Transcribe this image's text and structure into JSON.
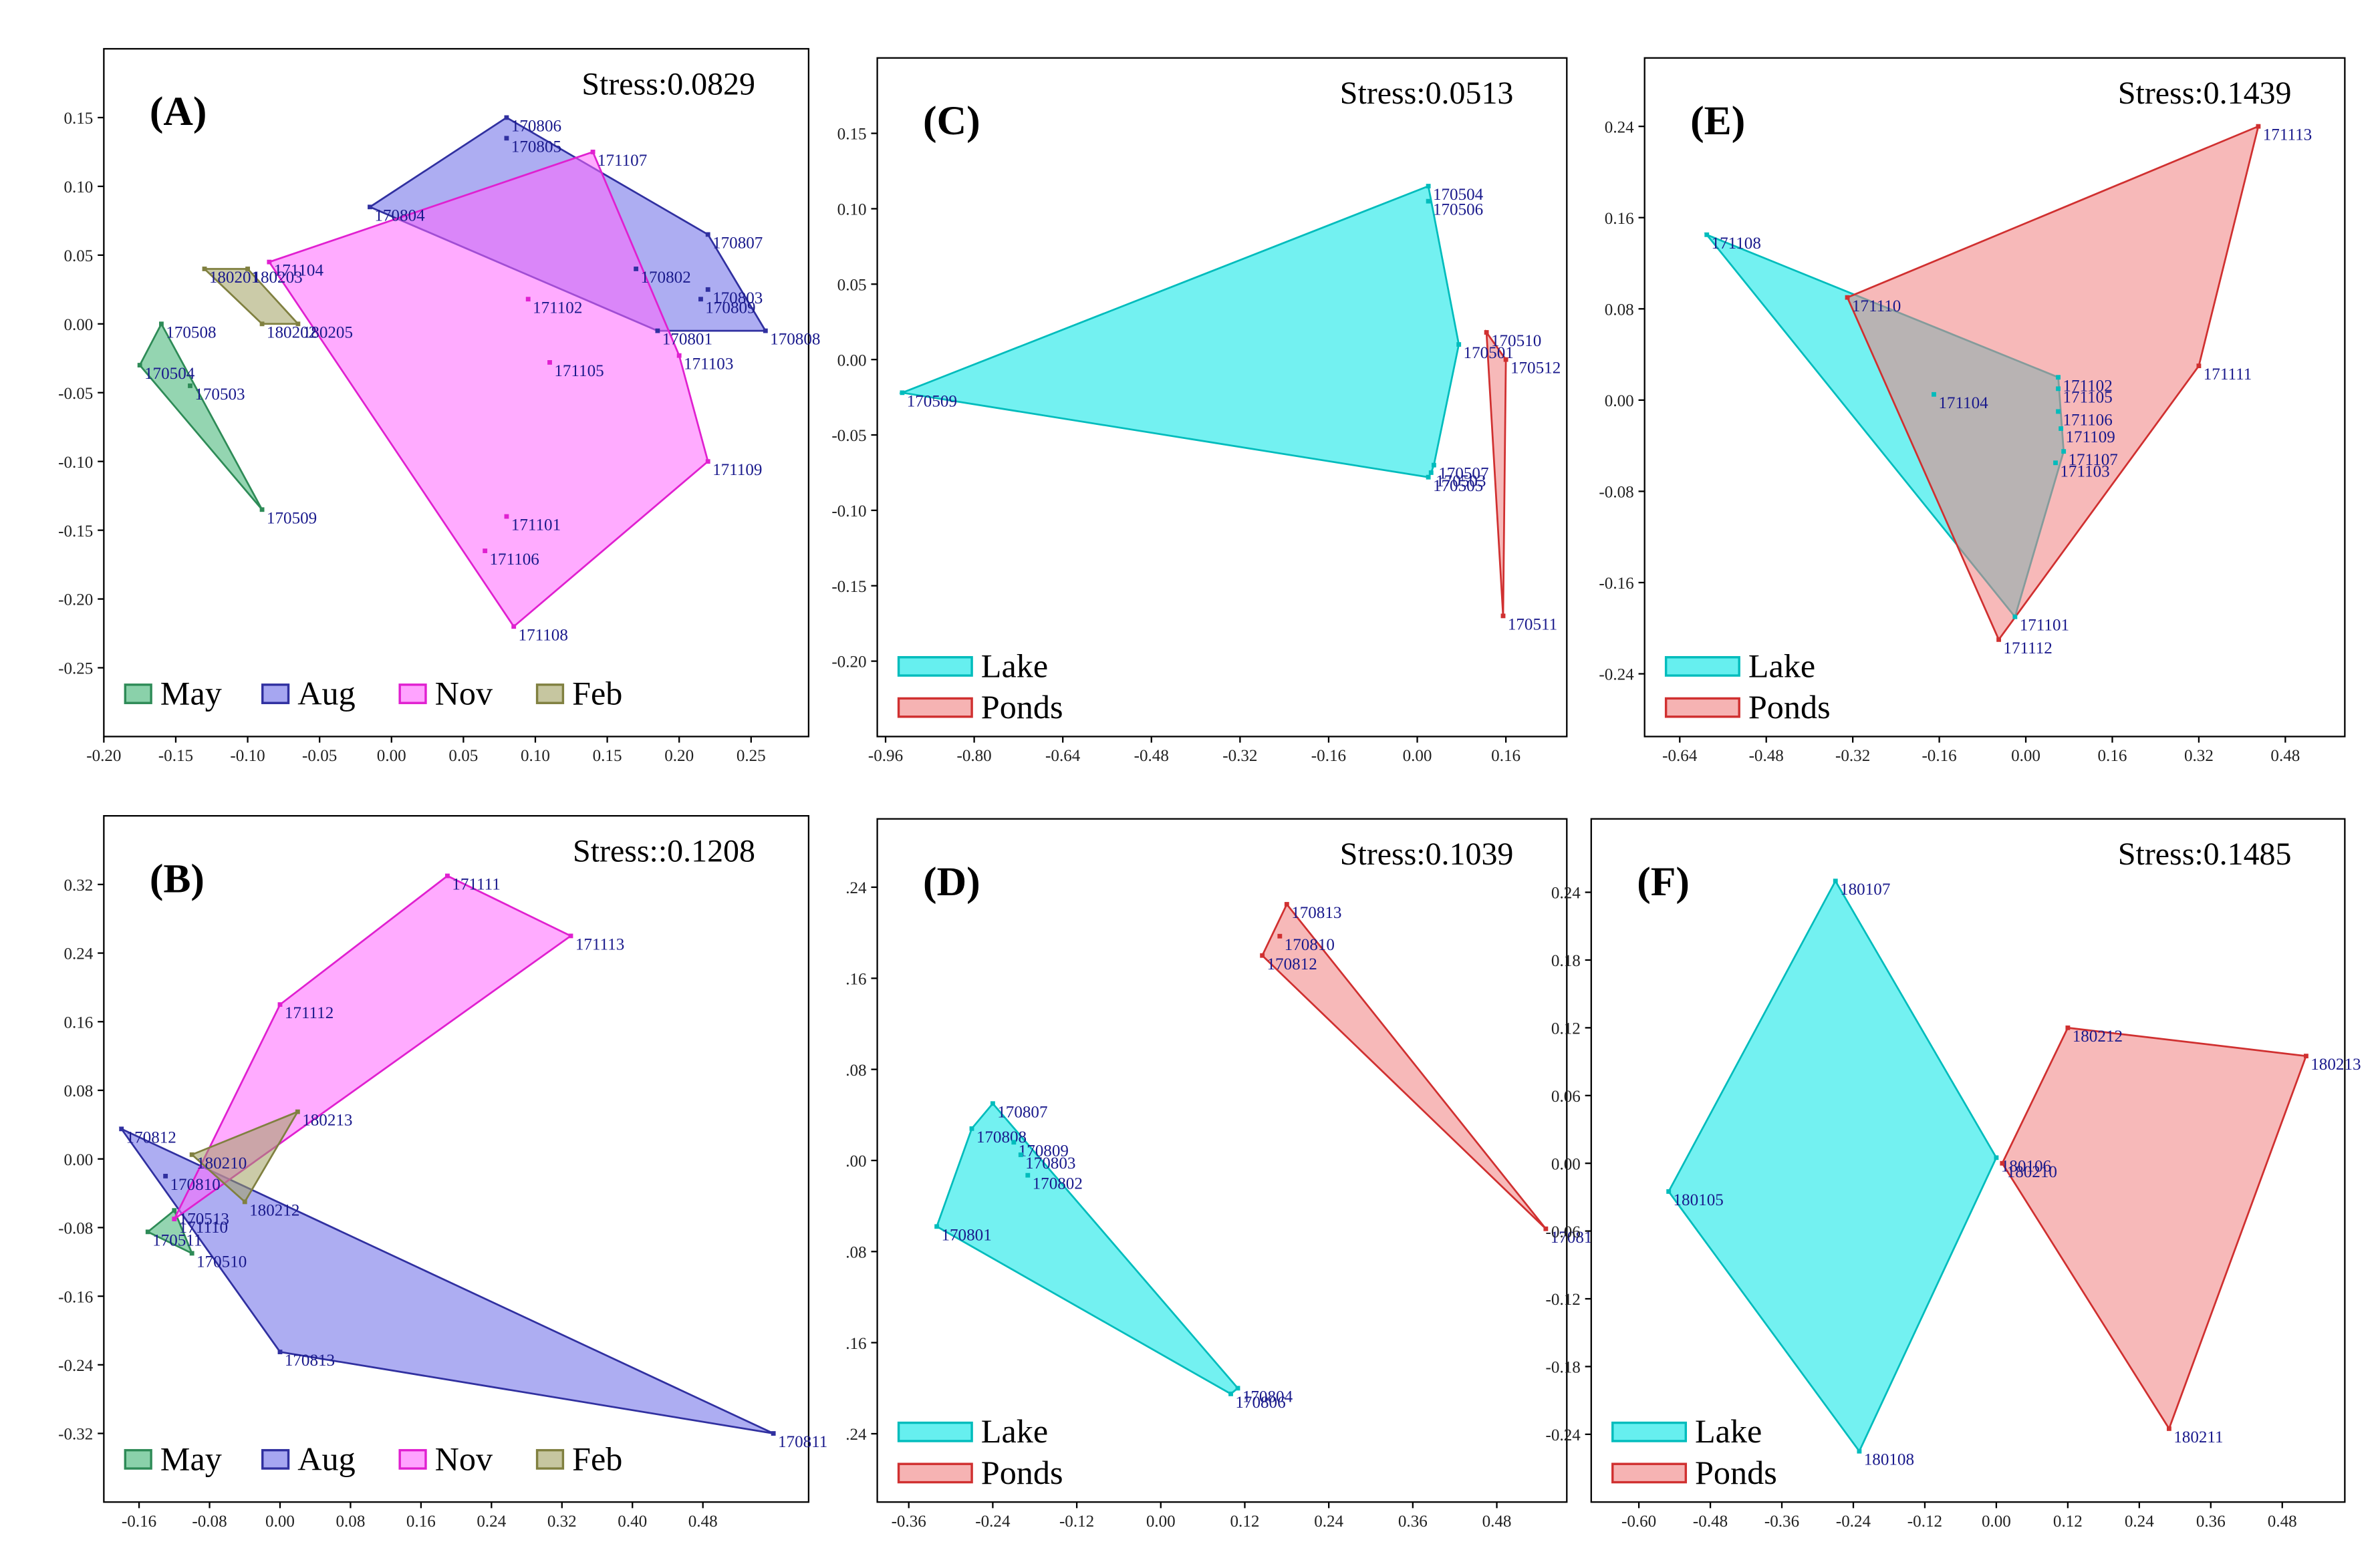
{
  "chart_data": [
    {
      "type": "scatter",
      "title": "(A)",
      "annotation": "Stress:0.0829",
      "legend": "lower left",
      "xlim": [
        -0.2,
        0.29
      ],
      "ylim": [
        -0.3,
        0.2
      ],
      "xticks": [
        {
          "value": -0.2,
          "label": "-0.20"
        },
        -0.15,
        {
          "value": -0.1,
          "label": "-0.10"
        },
        -0.05,
        {
          "value": 0,
          "label": "0.00"
        },
        0.05,
        {
          "value": 0.1,
          "label": "0.10"
        },
        0.15,
        {
          "value": 0.2,
          "label": "0.20"
        },
        0.25
      ],
      "yticks": [
        -0.25,
        {
          "value": -0.2,
          "label": "-0.20"
        },
        -0.15,
        {
          "value": -0.1,
          "label": "-0.10"
        },
        -0.05,
        {
          "value": 0,
          "label": "0.00"
        },
        0.05,
        {
          "value": 0.1,
          "label": "0.10"
        },
        0.15
      ],
      "series": [
        {
          "name": "May",
          "color": "#2e8b57",
          "fill": "#3cb371",
          "x": [
            -0.16,
            -0.175,
            -0.14,
            -0.09
          ],
          "y": [
            0.0,
            -0.03,
            -0.045,
            -0.135
          ],
          "labels": [
            "170508",
            "170504",
            "170503",
            "170509"
          ]
        },
        {
          "name": "Aug",
          "color": "#3030a0",
          "fill": "#6a6ae8",
          "x": [
            0.08,
            0.08,
            -0.015,
            0.22,
            0.17,
            0.22,
            0.215,
            0.185,
            0.26
          ],
          "y": [
            0.15,
            0.135,
            0.085,
            0.065,
            0.04,
            0.025,
            0.018,
            -0.005,
            -0.005
          ],
          "labels": [
            "170806",
            "170805",
            "170804",
            "170807",
            "170802",
            "170803",
            "170809",
            "170801",
            "170808"
          ]
        },
        {
          "name": "Nov",
          "color": "#e020d0",
          "fill": "#ff66ff",
          "x": [
            0.14,
            -0.085,
            0.095,
            0.11,
            0.2,
            0.22,
            0.08,
            0.065,
            0.085
          ],
          "y": [
            0.125,
            0.045,
            0.018,
            -0.028,
            -0.023,
            -0.1,
            -0.14,
            -0.165,
            -0.22
          ],
          "labels": [
            "171107",
            "171104",
            "171102",
            "171105",
            "171103",
            "171109",
            "171101",
            "171106",
            "171108"
          ]
        },
        {
          "name": "Feb",
          "color": "#808040",
          "fill": "#a0a060",
          "x": [
            -0.13,
            -0.1,
            -0.065,
            -0.09
          ],
          "y": [
            0.04,
            0.04,
            0.0,
            0.0
          ],
          "labels": [
            "180201",
            "180203",
            "180205",
            "180202"
          ]
        }
      ]
    },
    {
      "type": "scatter",
      "title": "(B)",
      "annotation": "Stress::0.1208",
      "legend": "lower left",
      "xlim": [
        -0.2,
        0.6
      ],
      "ylim": [
        -0.4,
        0.4
      ],
      "xticks": [
        -0.16,
        -0.08,
        {
          "value": 0,
          "label": "0.00"
        },
        0.08,
        0.16,
        0.24,
        0.32,
        {
          "value": 0.4,
          "label": "0.40"
        },
        0.48
      ],
      "yticks": [
        -0.32,
        -0.24,
        -0.16,
        -0.08,
        {
          "value": 0,
          "label": "0.00"
        },
        0.08,
        0.16,
        0.24,
        0.32
      ],
      "series": [
        {
          "name": "May",
          "color": "#2e8b57",
          "fill": "#3cb371",
          "x": [
            -0.15,
            -0.1,
            -0.12
          ],
          "y": [
            -0.085,
            -0.11,
            -0.06
          ],
          "labels": [
            "170511",
            "170510",
            "170513"
          ]
        },
        {
          "name": "Aug",
          "color": "#3030a0",
          "fill": "#6a6ae8",
          "x": [
            -0.18,
            -0.13,
            0.0,
            0.56
          ],
          "y": [
            0.035,
            -0.02,
            -0.225,
            -0.32
          ],
          "labels": [
            "170812",
            "170810",
            "170813",
            "170811"
          ]
        },
        {
          "name": "Nov",
          "color": "#e020d0",
          "fill": "#ff66ff",
          "x": [
            0.19,
            0.33,
            0.0,
            -0.12
          ],
          "y": [
            0.33,
            0.26,
            0.18,
            -0.07
          ],
          "labels": [
            "171111",
            "171113",
            "171112",
            "171110"
          ]
        },
        {
          "name": "Feb",
          "color": "#808040",
          "fill": "#a0a060",
          "x": [
            0.02,
            -0.04,
            -0.1
          ],
          "y": [
            0.055,
            -0.05,
            0.005
          ],
          "labels": [
            "180213",
            "180212",
            "180210"
          ]
        }
      ]
    },
    {
      "type": "scatter",
      "title": "(C)",
      "annotation": "Stress:0.0513",
      "legend": "lower left",
      "xlim": [
        -0.975,
        0.27
      ],
      "ylim": [
        -0.25,
        0.2
      ],
      "xticks": [
        -0.96,
        {
          "value": -0.8,
          "label": "-0.80"
        },
        -0.64,
        -0.48,
        -0.32,
        -0.16,
        {
          "value": 0,
          "label": "0.00"
        },
        0.16
      ],
      "yticks": [
        {
          "value": -0.2,
          "label": "-0.20"
        },
        -0.15,
        {
          "value": -0.1,
          "label": "-0.10"
        },
        -0.05,
        {
          "value": 0,
          "label": "0.00"
        },
        0.05,
        {
          "value": 0.1,
          "label": "0.10"
        },
        0.15
      ],
      "series": [
        {
          "name": "Lake",
          "color": "#00bcbc",
          "fill": "#00e5e5",
          "x": [
            0.02,
            0.02,
            -0.93,
            0.075,
            0.03,
            0.025,
            0.02
          ],
          "y": [
            0.115,
            0.105,
            -0.022,
            0.01,
            -0.07,
            -0.075,
            -0.078
          ],
          "labels": [
            "170504",
            "170506",
            "170509",
            "170501",
            "170507",
            "170503",
            "170505"
          ]
        },
        {
          "name": "Ponds",
          "color": "#d03030",
          "fill": "#f08080",
          "x": [
            0.125,
            0.16,
            0.155
          ],
          "y": [
            0.018,
            0.0,
            -0.17
          ],
          "labels": [
            "170510",
            "170512",
            "170511"
          ]
        }
      ]
    },
    {
      "type": "scatter",
      "title": "(D)",
      "annotation": "Stress:0.1039",
      "legend": "lower left",
      "xlim": [
        -0.405,
        0.58
      ],
      "ylim": [
        -0.3,
        0.3
      ],
      "xticks": [
        -0.36,
        -0.24,
        -0.12,
        {
          "value": 0,
          "label": "0.00"
        },
        0.12,
        0.24,
        0.36,
        0.48
      ],
      "yticks": [
        {
          "value": -0.24,
          "label": ".24"
        },
        {
          "value": -0.16,
          "label": ".16"
        },
        {
          "value": -0.08,
          "label": ".08"
        },
        {
          "value": 0,
          "label": ".00"
        },
        {
          "value": 0.08,
          "label": ".08"
        },
        {
          "value": 0.16,
          "label": ".16"
        },
        {
          "value": 0.24,
          "label": ".24"
        }
      ],
      "series": [
        {
          "name": "Lake",
          "color": "#00bcbc",
          "fill": "#00e5e5",
          "x": [
            -0.24,
            -0.27,
            -0.21,
            -0.2,
            -0.19,
            -0.32,
            0.11,
            0.1
          ],
          "y": [
            0.05,
            0.028,
            0.016,
            0.005,
            -0.013,
            -0.058,
            -0.2,
            -0.205
          ],
          "labels": [
            "170807",
            "170808",
            "170809",
            "170803",
            "170802",
            "170801",
            "170804",
            "170806"
          ]
        },
        {
          "name": "Ponds",
          "color": "#d03030",
          "fill": "#f08080",
          "x": [
            0.18,
            0.17,
            0.145,
            0.55
          ],
          "y": [
            0.225,
            0.197,
            0.18,
            -0.06
          ],
          "labels": [
            "170813",
            "170810",
            "170812",
            "17081"
          ]
        }
      ]
    },
    {
      "type": "scatter",
      "title": "(E)",
      "annotation": "Stress:0.1439",
      "legend": "lower left",
      "xlim": [
        -0.705,
        0.59
      ],
      "ylim": [
        -0.295,
        0.3
      ],
      "xticks": [
        -0.64,
        -0.48,
        -0.32,
        -0.16,
        {
          "value": 0,
          "label": "0.00"
        },
        0.16,
        0.32,
        0.48
      ],
      "yticks": [
        -0.24,
        -0.16,
        -0.08,
        {
          "value": 0,
          "label": "0.00"
        },
        0.08,
        0.16,
        0.24
      ],
      "series": [
        {
          "name": "Lake",
          "color": "#00bcbc",
          "fill": "#00e5e5",
          "x": [
            -0.59,
            0.06,
            0.06,
            0.06,
            0.065,
            0.07,
            0.055,
            -0.02,
            -0.17
          ],
          "y": [
            0.145,
            0.02,
            0.01,
            -0.01,
            -0.025,
            -0.045,
            -0.055,
            -0.19,
            0.005
          ],
          "labels": [
            "171108",
            "171102",
            "171105",
            "171106",
            "171109",
            "171107",
            "171103",
            "171101",
            "171104"
          ]
        },
        {
          "name": "Ponds",
          "color": "#d03030",
          "fill": "#f08080",
          "x": [
            0.43,
            -0.33,
            0.32,
            -0.05
          ],
          "y": [
            0.24,
            0.09,
            0.03,
            -0.21
          ],
          "labels": [
            "171113",
            "171110",
            "171111",
            "171112"
          ]
        }
      ]
    },
    {
      "type": "scatter",
      "title": "(F)",
      "annotation": "Stress:0.1485",
      "legend": "lower left",
      "xlim": [
        -0.68,
        0.585
      ],
      "ylim": [
        -0.3,
        0.305
      ],
      "xticks": [
        {
          "value": -0.6,
          "label": "-0.60"
        },
        -0.48,
        -0.36,
        -0.24,
        -0.12,
        {
          "value": 0,
          "label": "0.00"
        },
        0.12,
        0.24,
        0.36,
        0.48
      ],
      "yticks": [
        -0.24,
        -0.18,
        -0.12,
        -0.06,
        {
          "value": 0,
          "label": "0.00"
        },
        0.06,
        0.12,
        0.18,
        0.24
      ],
      "series": [
        {
          "name": "Lake",
          "color": "#00bcbc",
          "fill": "#00e5e5",
          "x": [
            -0.27,
            -0.55,
            -0.23,
            0.0
          ],
          "y": [
            0.25,
            -0.025,
            -0.255,
            0.005
          ],
          "labels": [
            "180107",
            "180105",
            "180108",
            "180106"
          ]
        },
        {
          "name": "Ponds",
          "color": "#d03030",
          "fill": "#f08080",
          "x": [
            0.12,
            0.52,
            0.29,
            0.01
          ],
          "y": [
            0.12,
            0.095,
            -0.235,
            0.0
          ],
          "labels": [
            "180212",
            "180213",
            "180211",
            "180210"
          ]
        }
      ]
    }
  ]
}
